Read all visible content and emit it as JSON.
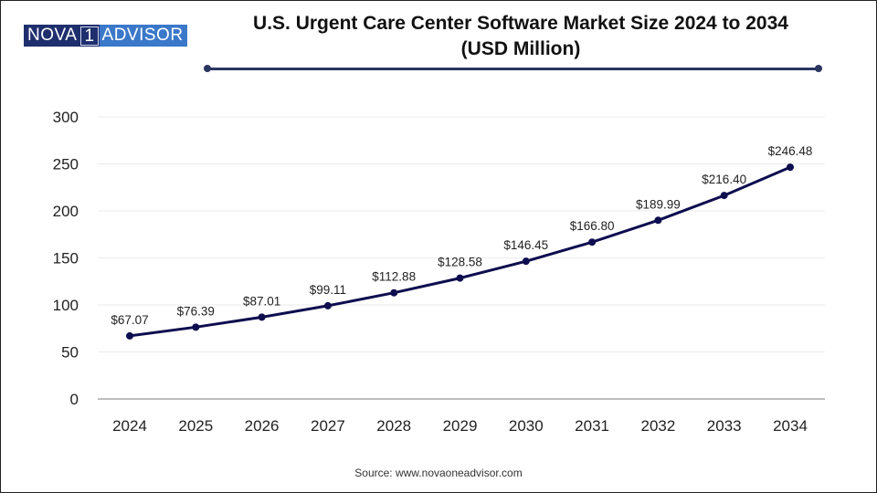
{
  "logo": {
    "part1": "NOVA",
    "part2": "1",
    "part3": "ADVISOR"
  },
  "source": "Source: www.novaoneadvisor.com",
  "chart_data": {
    "type": "line",
    "title": "U.S. Urgent Care Center Software Market Size 2024 to 2034",
    "subtitle": "(USD Million)",
    "xlabel": "",
    "ylabel": "",
    "categories": [
      "2024",
      "2025",
      "2026",
      "2027",
      "2028",
      "2029",
      "2030",
      "2031",
      "2032",
      "2033",
      "2034"
    ],
    "series": [
      {
        "name": "Market Size (USD Million)",
        "color": "#0d0d4f",
        "values": [
          67.07,
          76.39,
          87.01,
          99.11,
          112.88,
          128.58,
          146.45,
          166.8,
          189.99,
          216.4,
          246.48
        ],
        "labels": [
          "$67.07",
          "$76.39",
          "$87.01",
          "$99.11",
          "$112.88",
          "$128.58",
          "$146.45",
          "$166.80",
          "$189.99",
          "$216.40",
          "$246.48"
        ]
      }
    ],
    "ylim": [
      0,
      300
    ],
    "yticks": [
      0,
      50,
      100,
      150,
      200,
      250,
      300
    ],
    "grid": true,
    "legend": "none"
  }
}
